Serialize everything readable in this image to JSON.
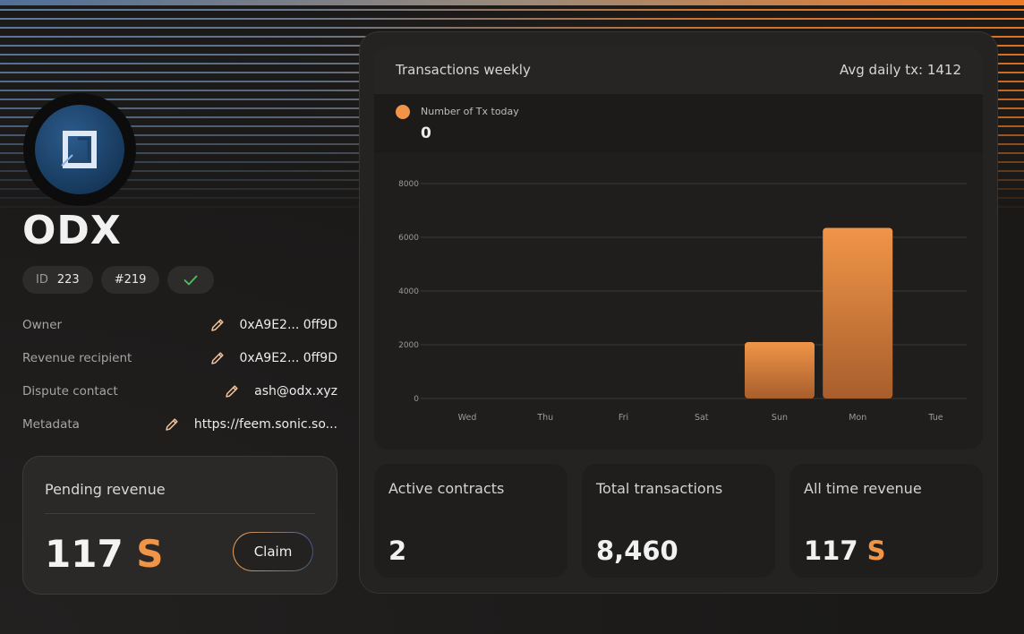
{
  "profile": {
    "name": "ODX",
    "id_label": "ID",
    "id_value": "223",
    "rank": "#219",
    "verified_icon": "check-icon"
  },
  "details": [
    {
      "label": "Owner",
      "value": "0xA9E2... 0ff9D"
    },
    {
      "label": "Revenue recipient",
      "value": "0xA9E2... 0ff9D"
    },
    {
      "label": "Dispute contact",
      "value": "ash@odx.xyz"
    },
    {
      "label": "Metadata",
      "value": "https://feem.sonic.so..."
    }
  ],
  "pending": {
    "title": "Pending revenue",
    "amount": "117",
    "unit": "S",
    "claim_label": "Claim"
  },
  "chart_header": {
    "title": "Transactions weekly",
    "avg": "Avg daily tx: 1412"
  },
  "legend": {
    "label": "Number of Tx today",
    "value": "0"
  },
  "chart_data": {
    "type": "bar",
    "categories": [
      "Wed",
      "Thu",
      "Fri",
      "Sat",
      "Sun",
      "Mon",
      "Tue"
    ],
    "series": [
      {
        "name": "Number of Tx today",
        "values": [
          0,
          0,
          0,
          0,
          2100,
          6350,
          0
        ]
      }
    ],
    "ylim": [
      0,
      8000
    ],
    "yticks": [
      0,
      2000,
      4000,
      6000,
      8000
    ],
    "grid": true,
    "color": "#f09548"
  },
  "stats": [
    {
      "title": "Active contracts",
      "value": "2",
      "unit": ""
    },
    {
      "title": "Total transactions",
      "value": "8,460",
      "unit": ""
    },
    {
      "title": "All time revenue",
      "value": "117",
      "unit": "S"
    }
  ],
  "colors": {
    "accent": "#f09548",
    "background": "#1c1b1a",
    "card": "#242322"
  }
}
